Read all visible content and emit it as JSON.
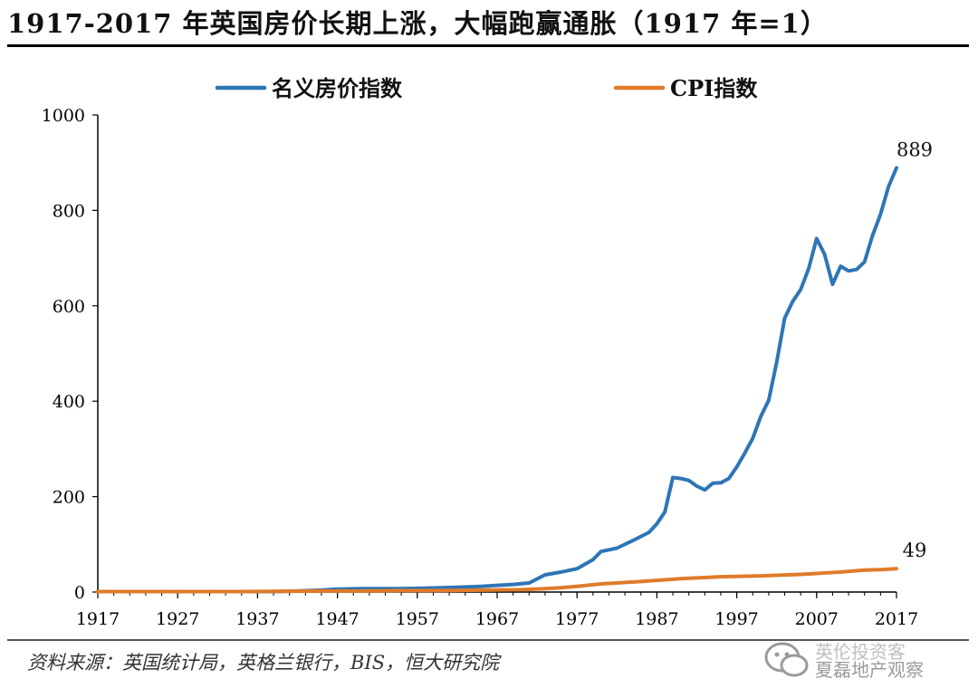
{
  "title": "1917-2017 年英国房价长期上涨，大幅跑赢通胀（1917 年=1）",
  "source": "资料来源：英国统计局，英格兰银行，BIS，恒大研究院",
  "watermark": {
    "line1": "英伦投资客",
    "line2": "夏磊地产观察"
  },
  "colors": {
    "house": "#2e75b6",
    "cpi": "#e07b29",
    "axis": "#000000"
  },
  "chart_data": {
    "type": "line",
    "title": "1917-2017 年英国房价长期上涨，大幅跑赢通胀（1917 年=1）",
    "xlabel": "",
    "ylabel": "",
    "xlim": [
      1917,
      2017
    ],
    "ylim": [
      0,
      1000
    ],
    "yticks": [
      0,
      200,
      400,
      600,
      800,
      1000
    ],
    "xticks": [
      1917,
      1927,
      1937,
      1947,
      1957,
      1967,
      1977,
      1987,
      1997,
      2007,
      2017
    ],
    "legend": "top-center",
    "series": [
      {
        "name": "名义房价指数",
        "color": "#2e75b6",
        "end_label": "889",
        "x": [
          1917,
          1920,
          1925,
          1930,
          1935,
          1939,
          1942,
          1945,
          1947,
          1950,
          1952,
          1955,
          1958,
          1960,
          1962,
          1965,
          1967,
          1969,
          1971,
          1973,
          1975,
          1977,
          1979,
          1980,
          1982,
          1984,
          1986,
          1987,
          1988,
          1989,
          1990,
          1991,
          1992,
          1993,
          1994,
          1995,
          1996,
          1997,
          1998,
          1999,
          2000,
          2001,
          2002,
          2003,
          2004,
          2005,
          2006,
          2007,
          2008,
          2009,
          2010,
          2011,
          2012,
          2013,
          2014,
          2015,
          2016,
          2017
        ],
        "values": [
          1,
          1,
          1,
          1,
          1,
          1,
          2,
          4,
          6,
          7,
          7,
          7,
          8,
          9,
          10,
          12,
          14,
          16,
          19,
          36,
          42,
          49,
          68,
          85,
          92,
          108,
          125,
          143,
          168,
          240,
          238,
          234,
          222,
          214,
          228,
          229,
          238,
          262,
          291,
          322,
          368,
          402,
          482,
          574,
          609,
          634,
          678,
          741,
          708,
          645,
          683,
          673,
          676,
          692,
          747,
          792,
          850,
          889
        ]
      },
      {
        "name": "CPI指数",
        "color": "#e07b29",
        "end_label": "49",
        "x": [
          1917,
          1925,
          1935,
          1945,
          1950,
          1955,
          1960,
          1965,
          1970,
          1973,
          1975,
          1977,
          1980,
          1985,
          1990,
          1995,
          2000,
          2005,
          2010,
          2013,
          2015,
          2017
        ],
        "values": [
          1,
          1,
          1,
          2,
          2,
          3,
          3,
          4,
          5,
          7,
          9,
          12,
          17,
          22,
          28,
          32,
          34,
          37,
          42,
          46,
          47,
          49
        ]
      }
    ]
  }
}
